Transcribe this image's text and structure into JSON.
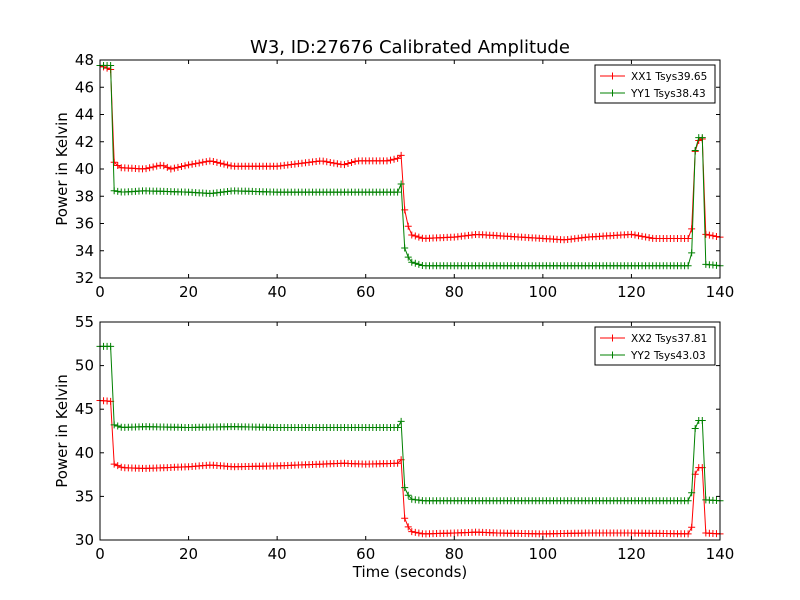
{
  "figure": {
    "title": "W3, ID:27676 Calibrated Amplitude",
    "xlabel": "Time (seconds)"
  },
  "colors": {
    "red": "#ff0000",
    "green": "#008000",
    "axes": "#000000",
    "background": "#ffffff"
  },
  "chart_data": [
    {
      "type": "line",
      "title": "W3, ID:27676 Calibrated Amplitude",
      "xlabel": "",
      "ylabel": "Power in Kelvin",
      "xlim": [
        0,
        140
      ],
      "ylim": [
        32,
        48
      ],
      "xticks": [
        "0",
        "20",
        "40",
        "60",
        "80",
        "100",
        "120",
        "140"
      ],
      "yticks": [
        "32",
        "34",
        "36",
        "38",
        "40",
        "42",
        "44",
        "46",
        "48"
      ],
      "grid": false,
      "legend": "top-right",
      "series": [
        {
          "name": "XX1 Tsys39.65",
          "color": "#ff0000",
          "points": [
            [
              0,
              47.6
            ],
            [
              2.4,
              47.3
            ],
            [
              3.2,
              40.5
            ],
            [
              4.5,
              40.1
            ],
            [
              10,
              40.0
            ],
            [
              14,
              40.3
            ],
            [
              16,
              40.0
            ],
            [
              20,
              40.3
            ],
            [
              25,
              40.6
            ],
            [
              30,
              40.2
            ],
            [
              40,
              40.2
            ],
            [
              50,
              40.6
            ],
            [
              55,
              40.3
            ],
            [
              58,
              40.6
            ],
            [
              65,
              40.6
            ],
            [
              67.5,
              40.8
            ],
            [
              68,
              41.0
            ],
            [
              68.8,
              37.0
            ],
            [
              70,
              35.2
            ],
            [
              73,
              34.9
            ],
            [
              80,
              35.0
            ],
            [
              85,
              35.2
            ],
            [
              90,
              35.1
            ],
            [
              100,
              34.9
            ],
            [
              105,
              34.8
            ],
            [
              110,
              35.0
            ],
            [
              120,
              35.2
            ],
            [
              125,
              34.9
            ],
            [
              133.5,
              34.9
            ],
            [
              134.5,
              42.0
            ],
            [
              136,
              42.2
            ],
            [
              136.8,
              35.2
            ],
            [
              140,
              35.0
            ]
          ]
        },
        {
          "name": "YY1 Tsys38.43",
          "color": "#008000",
          "points": [
            [
              0,
              47.6
            ],
            [
              2.4,
              47.6
            ],
            [
              3.2,
              38.4
            ],
            [
              5,
              38.3
            ],
            [
              10,
              38.4
            ],
            [
              20,
              38.3
            ],
            [
              25,
              38.2
            ],
            [
              30,
              38.4
            ],
            [
              40,
              38.3
            ],
            [
              50,
              38.3
            ],
            [
              60,
              38.3
            ],
            [
              67.5,
              38.3
            ],
            [
              68,
              38.9
            ],
            [
              68.8,
              34.2
            ],
            [
              70,
              33.2
            ],
            [
              73,
              32.9
            ],
            [
              80,
              32.9
            ],
            [
              90,
              32.9
            ],
            [
              100,
              32.9
            ],
            [
              110,
              32.9
            ],
            [
              120,
              32.9
            ],
            [
              133.5,
              32.9
            ],
            [
              134.5,
              42.3
            ],
            [
              136,
              42.3
            ],
            [
              136.8,
              33.0
            ],
            [
              140,
              32.9
            ]
          ]
        }
      ]
    },
    {
      "type": "line",
      "title": "",
      "xlabel": "Time (seconds)",
      "ylabel": "Power in Kelvin",
      "xlim": [
        0,
        140
      ],
      "ylim": [
        30,
        55
      ],
      "xticks": [
        "0",
        "20",
        "40",
        "60",
        "80",
        "100",
        "120",
        "140"
      ],
      "yticks": [
        "30",
        "35",
        "40",
        "45",
        "50",
        "55"
      ],
      "grid": false,
      "legend": "top-right",
      "series": [
        {
          "name": "XX2 Tsys37.81",
          "color": "#ff0000",
          "points": [
            [
              0,
              46.0
            ],
            [
              2.4,
              45.9
            ],
            [
              3.2,
              38.7
            ],
            [
              5,
              38.3
            ],
            [
              10,
              38.2
            ],
            [
              15,
              38.3
            ],
            [
              20,
              38.4
            ],
            [
              25,
              38.6
            ],
            [
              30,
              38.4
            ],
            [
              40,
              38.5
            ],
            [
              50,
              38.7
            ],
            [
              55,
              38.8
            ],
            [
              60,
              38.7
            ],
            [
              67.5,
              38.8
            ],
            [
              68,
              39.2
            ],
            [
              68.8,
              32.5
            ],
            [
              70,
              31.0
            ],
            [
              73,
              30.7
            ],
            [
              80,
              30.8
            ],
            [
              85,
              30.9
            ],
            [
              90,
              30.8
            ],
            [
              100,
              30.7
            ],
            [
              110,
              30.8
            ],
            [
              120,
              30.8
            ],
            [
              133.5,
              30.7
            ],
            [
              134.5,
              38.3
            ],
            [
              136,
              38.3
            ],
            [
              136.8,
              30.8
            ],
            [
              140,
              30.7
            ]
          ]
        },
        {
          "name": "YY2 Tsys43.03",
          "color": "#008000",
          "points": [
            [
              0,
              52.2
            ],
            [
              2.4,
              52.2
            ],
            [
              3.2,
              43.2
            ],
            [
              5,
              42.9
            ],
            [
              10,
              43.0
            ],
            [
              20,
              42.9
            ],
            [
              30,
              43.0
            ],
            [
              40,
              42.9
            ],
            [
              50,
              42.9
            ],
            [
              60,
              42.9
            ],
            [
              67.5,
              42.9
            ],
            [
              68,
              43.6
            ],
            [
              68.8,
              36.0
            ],
            [
              70,
              34.7
            ],
            [
              73,
              34.5
            ],
            [
              80,
              34.5
            ],
            [
              90,
              34.5
            ],
            [
              100,
              34.5
            ],
            [
              110,
              34.5
            ],
            [
              120,
              34.5
            ],
            [
              133.5,
              34.5
            ],
            [
              134.5,
              43.7
            ],
            [
              136,
              43.7
            ],
            [
              136.8,
              34.6
            ],
            [
              140,
              34.5
            ]
          ]
        }
      ]
    }
  ]
}
